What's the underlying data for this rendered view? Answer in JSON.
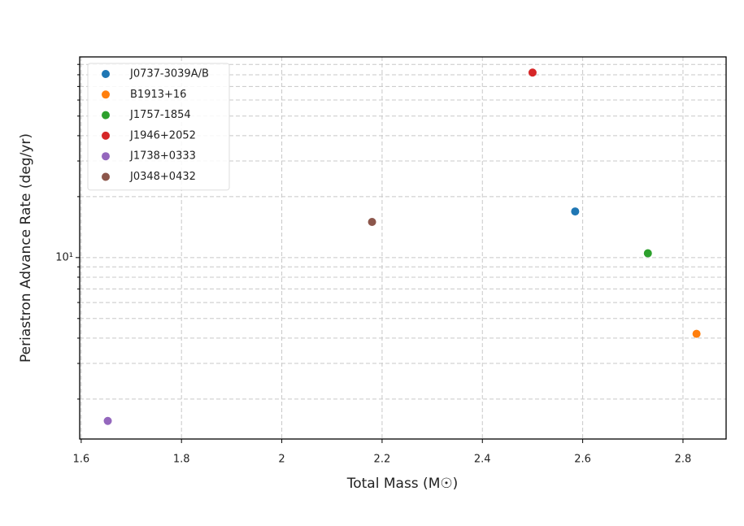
{
  "chart_data": {
    "type": "scatter",
    "xlabel": "Total Mass (M☉)",
    "ylabel": "Periastron Advance Rate (deg/yr)",
    "xlim": [
      1.597,
      2.886
    ],
    "xticks": [
      1.6,
      1.8,
      2.0,
      2.2,
      2.4,
      2.6,
      2.8
    ],
    "ylim": [
      1.27,
      98
    ],
    "yscale": "log",
    "yticks": [
      {
        "value": 10,
        "label": "10¹"
      }
    ],
    "yminorticks": [
      2,
      3,
      4,
      5,
      6,
      7,
      8,
      9,
      20,
      30,
      40,
      50,
      60,
      70,
      80,
      90
    ],
    "grid": true,
    "legend": "upper left",
    "series": [
      {
        "name": "J0737-3039A/B",
        "color": "#1f77b4",
        "x": [
          2.585
        ],
        "y": [
          16.9
        ]
      },
      {
        "name": "B1913+16",
        "color": "#ff7f0e",
        "x": [
          2.827
        ],
        "y": [
          4.2
        ]
      },
      {
        "name": "J1757-1854",
        "color": "#2ca02c",
        "x": [
          2.73
        ],
        "y": [
          10.5
        ]
      },
      {
        "name": "J1946+2052",
        "color": "#d62728",
        "x": [
          2.5
        ],
        "y": [
          82
        ]
      },
      {
        "name": "J1738+0333",
        "color": "#9467bd",
        "x": [
          1.653
        ],
        "y": [
          1.56
        ]
      },
      {
        "name": "J0348+0432",
        "color": "#8c564b",
        "x": [
          2.18
        ],
        "y": [
          15.0
        ]
      }
    ]
  }
}
